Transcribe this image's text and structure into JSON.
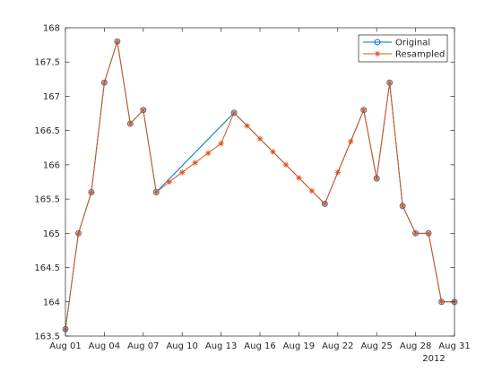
{
  "chart_data": {
    "type": "line",
    "title": "",
    "xlabel": "",
    "ylabel": "",
    "x_unit": "day of August 2012",
    "x_secondary_label": "2012",
    "xlim": [
      1,
      31
    ],
    "ylim": [
      163.5,
      168
    ],
    "xticks": [
      1,
      4,
      7,
      10,
      13,
      16,
      19,
      22,
      25,
      28,
      31
    ],
    "xtick_labels": [
      "Aug 01",
      "Aug 04",
      "Aug 07",
      "Aug 10",
      "Aug 13",
      "Aug 16",
      "Aug 19",
      "Aug 22",
      "Aug 25",
      "Aug 28",
      "Aug 31"
    ],
    "yticks": [
      163.5,
      164,
      164.5,
      165,
      165.5,
      166,
      166.5,
      167,
      167.5,
      168
    ],
    "ytick_labels": [
      "163.5",
      "164",
      "164.5",
      "165",
      "165.5",
      "166",
      "166.5",
      "167",
      "167.5",
      "168"
    ],
    "grid": false,
    "legend_position": "top-right",
    "series": [
      {
        "name": "Original",
        "color": "#0072bd",
        "marker": "circle",
        "x": [
          1,
          2,
          3,
          4,
          5,
          6,
          7,
          8,
          14,
          21,
          24,
          25,
          26,
          27,
          28,
          29,
          30,
          31
        ],
        "y": [
          163.6,
          165.0,
          165.6,
          167.2,
          167.8,
          166.6,
          166.8,
          165.6,
          166.76,
          165.43,
          166.8,
          165.8,
          167.2,
          165.4,
          165.0,
          165.0,
          164.0,
          164.0
        ]
      },
      {
        "name": "Resampled",
        "color": "#d95319",
        "marker": "star",
        "x": [
          1,
          2,
          3,
          4,
          5,
          6,
          7,
          8,
          9,
          10,
          11,
          12,
          13,
          14,
          15,
          16,
          17,
          18,
          19,
          20,
          21,
          22,
          23,
          24,
          25,
          26,
          27,
          28,
          29,
          30,
          31
        ],
        "y": [
          163.6,
          165.0,
          165.6,
          167.2,
          167.8,
          166.6,
          166.8,
          165.6,
          165.75,
          165.89,
          166.03,
          166.17,
          166.31,
          166.76,
          166.57,
          166.38,
          166.19,
          166.0,
          165.81,
          165.62,
          165.43,
          165.89,
          166.34,
          166.8,
          165.8,
          167.2,
          165.4,
          165.0,
          165.0,
          164.0,
          164.0
        ]
      }
    ]
  }
}
